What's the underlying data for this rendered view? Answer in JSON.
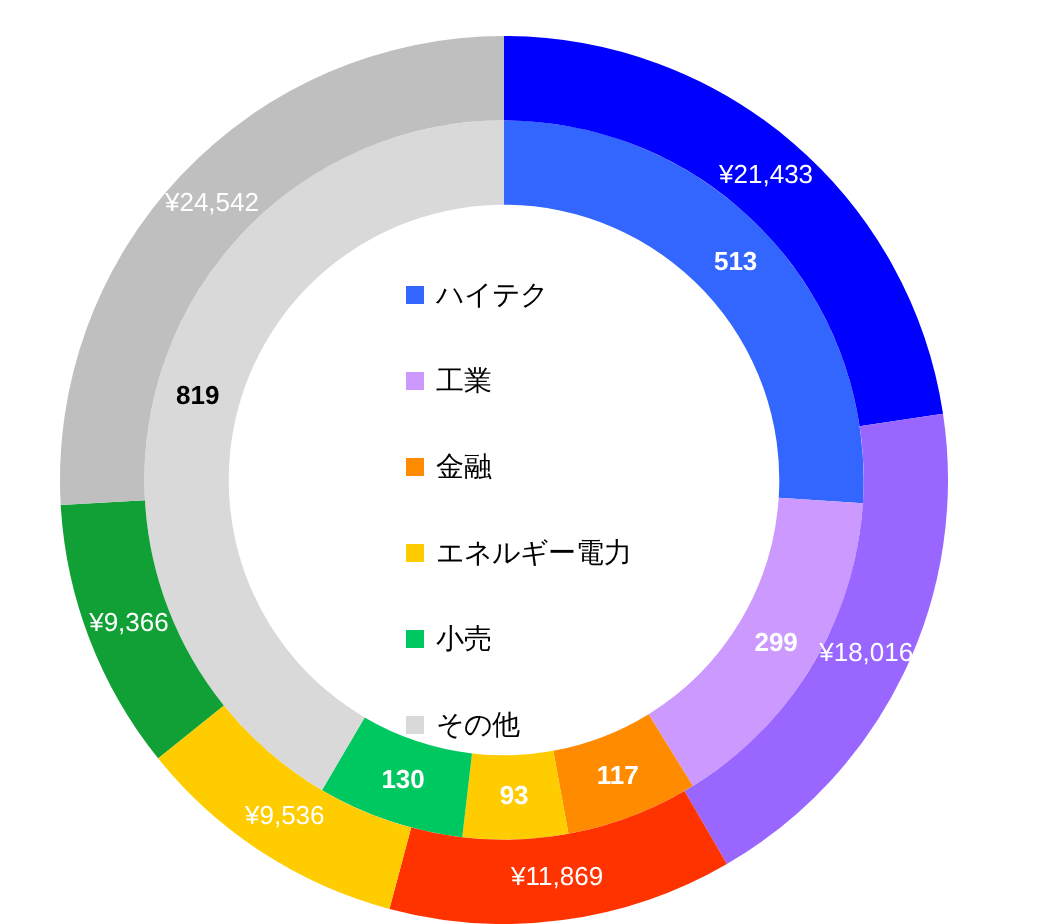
{
  "chart_data": {
    "type": "donut",
    "categories": [
      "ハイテク",
      "工業",
      "金融",
      "エネルギー電力",
      "小売",
      "その他"
    ],
    "legend": "center",
    "series": [
      {
        "values": [
          21433,
          18016,
          11869,
          9536,
          9366,
          24542
        ],
        "colors": [
          "#0000ff",
          "#9966ff",
          "#ff3300",
          "#ffcc00",
          "#10a035",
          "#bfbfbf"
        ],
        "value_labels": [
          "¥21,433",
          "¥18,016",
          "¥11,869",
          "¥9,536",
          "¥9,366",
          "¥24,542"
        ]
      },
      {
        "values": [
          513,
          299,
          117,
          93,
          130,
          819
        ],
        "colors": [
          "#3366ff",
          "#cc99ff",
          "#ff8c00",
          "#ffcc00",
          "#00c860",
          "#d9d9d9"
        ],
        "value_labels": [
          "513",
          "299",
          "117",
          "93",
          "130",
          "819"
        ]
      }
    ]
  }
}
